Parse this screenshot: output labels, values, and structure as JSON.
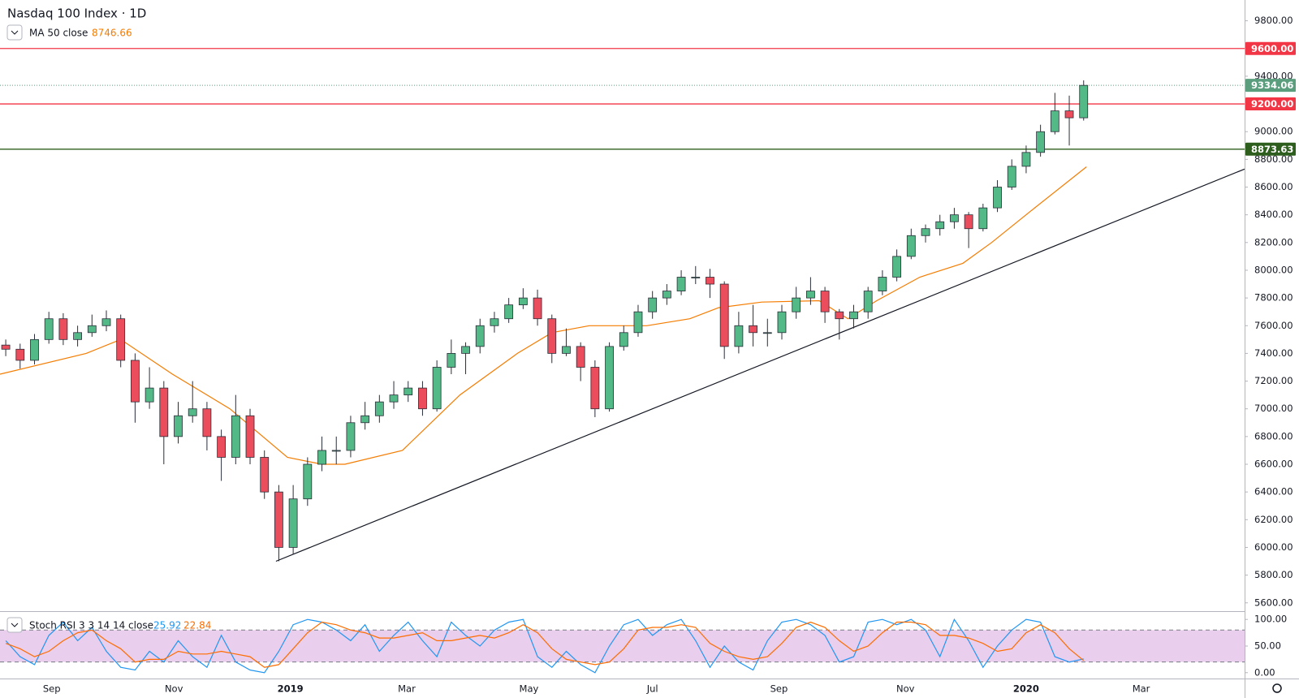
{
  "chart_data": [
    {
      "type": "candlestick",
      "title": "Nasdaq 100 Index · 1D",
      "xlim": [
        0,
        433
      ],
      "ylim": [
        5540,
        9950
      ],
      "xticks": [
        {
          "value": 18,
          "label": "Sep"
        },
        {
          "value": 60.5,
          "label": "Nov"
        },
        {
          "value": 101,
          "label": "2019"
        },
        {
          "value": 141.5,
          "label": "Mar"
        },
        {
          "value": 184,
          "label": "May"
        },
        {
          "value": 227,
          "label": "Jul"
        },
        {
          "value": 271,
          "label": "Sep"
        },
        {
          "value": 315,
          "label": "Nov"
        },
        {
          "value": 357,
          "label": "2020"
        },
        {
          "value": 397,
          "label": "Mar"
        }
      ],
      "yticks": [
        {
          "value": 5600,
          "label": "5600.00"
        },
        {
          "value": 5800,
          "label": "5800.00"
        },
        {
          "value": 6000,
          "label": "6000.00"
        },
        {
          "value": 6200,
          "label": "6200.00"
        },
        {
          "value": 6400,
          "label": "6400.00"
        },
        {
          "value": 6600,
          "label": "6600.00"
        },
        {
          "value": 6800,
          "label": "6800.00"
        },
        {
          "value": 7000,
          "label": "7000.00"
        },
        {
          "value": 7200,
          "label": "7200.00"
        },
        {
          "value": 7400,
          "label": "7400.00"
        },
        {
          "value": 7600,
          "label": "7600.00"
        },
        {
          "value": 7800,
          "label": "7800.00"
        },
        {
          "value": 8000,
          "label": "8000.00"
        },
        {
          "value": 8200,
          "label": "8200.00"
        },
        {
          "value": 8400,
          "label": "8400.00"
        },
        {
          "value": 8600,
          "label": "8600.00"
        },
        {
          "value": 8800,
          "label": "8800.00"
        },
        {
          "value": 9000,
          "label": "9000.00"
        },
        {
          "value": 9400,
          "label": "9400.00"
        },
        {
          "value": 9800,
          "label": "9800.00"
        }
      ],
      "up_color": "#53b987",
      "down_color": "#eb4d5c",
      "x": [
        2,
        7,
        12,
        17,
        22,
        27,
        32,
        37,
        42,
        47,
        52,
        57,
        62,
        67,
        72,
        77,
        82,
        87,
        92,
        97,
        102,
        107,
        112,
        117,
        122,
        127,
        132,
        137,
        142,
        147,
        152,
        157,
        162,
        167,
        172,
        177,
        182,
        187,
        192,
        197,
        202,
        207,
        212,
        217,
        222,
        227,
        232,
        237,
        242,
        247,
        252,
        257,
        262,
        267,
        272,
        277,
        282,
        287,
        292,
        297,
        302,
        307,
        312,
        317,
        322,
        327,
        332,
        337,
        342,
        347,
        352,
        357,
        362,
        367,
        372,
        377
      ],
      "open": [
        7460,
        7430,
        7350,
        7500,
        7650,
        7500,
        7550,
        7600,
        7650,
        7350,
        7050,
        7150,
        6800,
        6950,
        7000,
        6800,
        6650,
        6950,
        6650,
        6400,
        6000,
        6350,
        6600,
        6700,
        6700,
        6900,
        6950,
        7050,
        7100,
        7150,
        7000,
        7300,
        7400,
        7450,
        7600,
        7650,
        7750,
        7800,
        7650,
        7400,
        7450,
        7300,
        7000,
        7450,
        7550,
        7700,
        7800,
        7850,
        7950,
        7950,
        7900,
        7450,
        7600,
        7550,
        7550,
        7700,
        7800,
        7850,
        7700,
        7650,
        7700,
        7850,
        7950,
        8100,
        8250,
        8300,
        8350,
        8400,
        8300,
        8450,
        8600,
        8750,
        8850,
        9000,
        9150,
        9100
      ],
      "high": [
        7500,
        7470,
        7540,
        7700,
        7690,
        7600,
        7680,
        7710,
        7680,
        7400,
        7300,
        7200,
        7050,
        7200,
        7050,
        6850,
        7100,
        7000,
        6700,
        6450,
        6450,
        6650,
        6800,
        6800,
        6950,
        7050,
        7100,
        7200,
        7200,
        7200,
        7350,
        7500,
        7480,
        7650,
        7700,
        7800,
        7870,
        7860,
        7680,
        7580,
        7480,
        7350,
        7480,
        7600,
        7750,
        7850,
        7900,
        8000,
        8030,
        8010,
        7920,
        7700,
        7750,
        7650,
        7750,
        7880,
        7950,
        7880,
        7720,
        7750,
        7880,
        8000,
        8150,
        8300,
        8330,
        8400,
        8450,
        8420,
        8480,
        8650,
        8800,
        8900,
        9050,
        9280,
        9260,
        9370
      ],
      "low": [
        7380,
        7290,
        7320,
        7470,
        7460,
        7450,
        7520,
        7560,
        7300,
        6900,
        7000,
        6600,
        6750,
        6900,
        6700,
        6480,
        6600,
        6600,
        6350,
        5900,
        5950,
        6300,
        6550,
        6600,
        6650,
        6850,
        6900,
        7000,
        7050,
        6950,
        6980,
        7250,
        7250,
        7400,
        7550,
        7620,
        7720,
        7600,
        7330,
        7380,
        7200,
        6940,
        6980,
        7420,
        7520,
        7650,
        7750,
        7820,
        7900,
        7800,
        7360,
        7400,
        7450,
        7450,
        7500,
        7650,
        7750,
        7620,
        7500,
        7580,
        7650,
        7820,
        7920,
        8080,
        8200,
        8250,
        8300,
        8160,
        8280,
        8420,
        8580,
        8700,
        8820,
        8980,
        8900,
        9080
      ],
      "close": [
        7430,
        7350,
        7500,
        7650,
        7500,
        7550,
        7600,
        7650,
        7350,
        7050,
        7150,
        6800,
        6950,
        7000,
        6800,
        6650,
        6950,
        6650,
        6400,
        6000,
        6350,
        6600,
        6700,
        6700,
        6900,
        6950,
        7050,
        7100,
        7150,
        7000,
        7300,
        7400,
        7450,
        7600,
        7650,
        7750,
        7800,
        7650,
        7400,
        7450,
        7300,
        7000,
        7450,
        7550,
        7700,
        7800,
        7850,
        7950,
        7950,
        7900,
        7450,
        7600,
        7550,
        7550,
        7700,
        7800,
        7850,
        7700,
        7650,
        7700,
        7850,
        7950,
        8100,
        8250,
        8300,
        8350,
        8400,
        8300,
        8450,
        8600,
        8750,
        8850,
        9000,
        9150,
        9100,
        9334.06
      ],
      "ma": {
        "name": "MA 50 close",
        "color": "#f57c00",
        "x": [
          0,
          30,
          42,
          60,
          80,
          100,
          112,
          120,
          140,
          160,
          180,
          192,
          205,
          225,
          240,
          250,
          265,
          285,
          295,
          305,
          320,
          335,
          345,
          360,
          378
        ],
        "values": [
          7250,
          7400,
          7500,
          7250,
          7000,
          6650,
          6600,
          6600,
          6700,
          7100,
          7400,
          7550,
          7600,
          7600,
          7650,
          7730,
          7770,
          7780,
          7650,
          7780,
          7950,
          8050,
          8200,
          8450,
          8746.66
        ]
      },
      "trendline": {
        "x": [
          96,
          433
        ],
        "values": [
          5900,
          8730
        ],
        "color": "#131722"
      },
      "levels": [
        {
          "value": 9600,
          "label": "9600.00",
          "color": "#f23645",
          "style": "solid"
        },
        {
          "value": 9334.06,
          "color": "#5a9e7e",
          "style": "dotted"
        },
        {
          "value": 9200,
          "label": "9200.00",
          "color": "#f23645",
          "style": "solid"
        },
        {
          "value": 8873.63,
          "color": "#2e5e1e",
          "style": "solid"
        }
      ]
    },
    {
      "type": "line",
      "title": "Stoch RSI 3 3 14 14 close",
      "ylim": [
        -11,
        114
      ],
      "yticks": [
        {
          "value": 0,
          "label": "0.00"
        },
        {
          "value": 50,
          "label": "50.00"
        },
        {
          "value": 100,
          "label": "100.00"
        }
      ],
      "band": [
        20,
        80
      ],
      "band_color": "#e1bee7",
      "x": [
        2,
        7,
        12,
        17,
        22,
        27,
        32,
        37,
        42,
        47,
        52,
        57,
        62,
        67,
        72,
        77,
        82,
        87,
        92,
        97,
        102,
        107,
        112,
        117,
        122,
        127,
        132,
        137,
        142,
        147,
        152,
        157,
        162,
        167,
        172,
        177,
        182,
        187,
        192,
        197,
        202,
        207,
        212,
        217,
        222,
        227,
        232,
        237,
        242,
        247,
        252,
        257,
        262,
        267,
        272,
        277,
        282,
        287,
        292,
        297,
        302,
        307,
        312,
        317,
        322,
        327,
        332,
        337,
        342,
        347,
        352,
        357,
        362,
        367,
        372,
        377
      ],
      "series": [
        {
          "color": "#2196f3",
          "values": [
            60,
            30,
            15,
            70,
            95,
            60,
            85,
            40,
            10,
            5,
            40,
            20,
            60,
            30,
            10,
            70,
            20,
            5,
            0,
            40,
            90,
            100,
            95,
            80,
            60,
            90,
            40,
            70,
            95,
            60,
            30,
            95,
            70,
            50,
            80,
            95,
            100,
            30,
            10,
            40,
            15,
            0,
            50,
            90,
            100,
            70,
            90,
            100,
            60,
            10,
            50,
            20,
            5,
            60,
            95,
            100,
            90,
            70,
            20,
            30,
            95,
            100,
            90,
            100,
            80,
            30,
            100,
            60,
            10,
            50,
            80,
            100,
            95,
            30,
            20,
            25.92
          ]
        },
        {
          "color": "#ff6d00",
          "values": [
            55,
            45,
            30,
            40,
            60,
            75,
            80,
            60,
            45,
            20,
            25,
            25,
            40,
            35,
            35,
            40,
            35,
            30,
            10,
            15,
            45,
            75,
            95,
            90,
            80,
            75,
            65,
            65,
            70,
            75,
            60,
            60,
            65,
            70,
            65,
            75,
            90,
            75,
            45,
            25,
            20,
            15,
            20,
            45,
            80,
            85,
            85,
            90,
            85,
            55,
            40,
            30,
            25,
            30,
            55,
            85,
            95,
            85,
            60,
            40,
            50,
            75,
            95,
            95,
            90,
            70,
            70,
            65,
            55,
            40,
            45,
            75,
            90,
            75,
            45,
            22.84
          ]
        }
      ]
    }
  ]
}
